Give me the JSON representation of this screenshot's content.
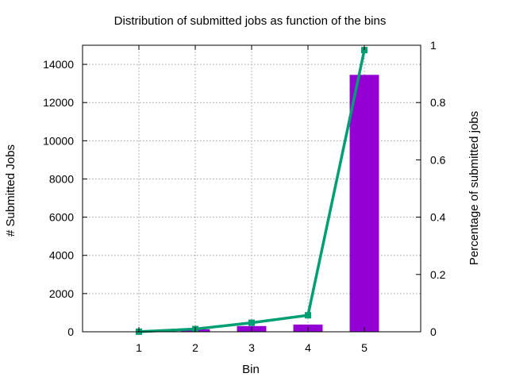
{
  "chart_data": {
    "type": "bar",
    "title": "Distribution of submitted jobs as function of the bins",
    "xlabel": "Bin",
    "ylabel": "# Submitted Jobs",
    "y2label": "Percentage of submitted jobs",
    "categories": [
      "1",
      "2",
      "3",
      "4",
      "5"
    ],
    "xlim": [
      0,
      6
    ],
    "ylim": [
      0,
      15000
    ],
    "yticks": [
      0,
      2000,
      4000,
      6000,
      8000,
      10000,
      12000,
      14000
    ],
    "y2lim": [
      0,
      1
    ],
    "y2ticks": [
      0,
      0.2,
      0.4,
      0.6,
      0.8,
      1
    ],
    "grid": true,
    "series": [
      {
        "type": "bar",
        "axis": "left",
        "color": "#9400d3",
        "values": [
          5,
          130,
          300,
          380,
          13450
        ]
      },
      {
        "type": "line",
        "axis": "right",
        "color": "#009e73",
        "marker": "square",
        "values": [
          0.0004,
          0.0096,
          0.0316,
          0.0576,
          0.983
        ]
      }
    ]
  }
}
